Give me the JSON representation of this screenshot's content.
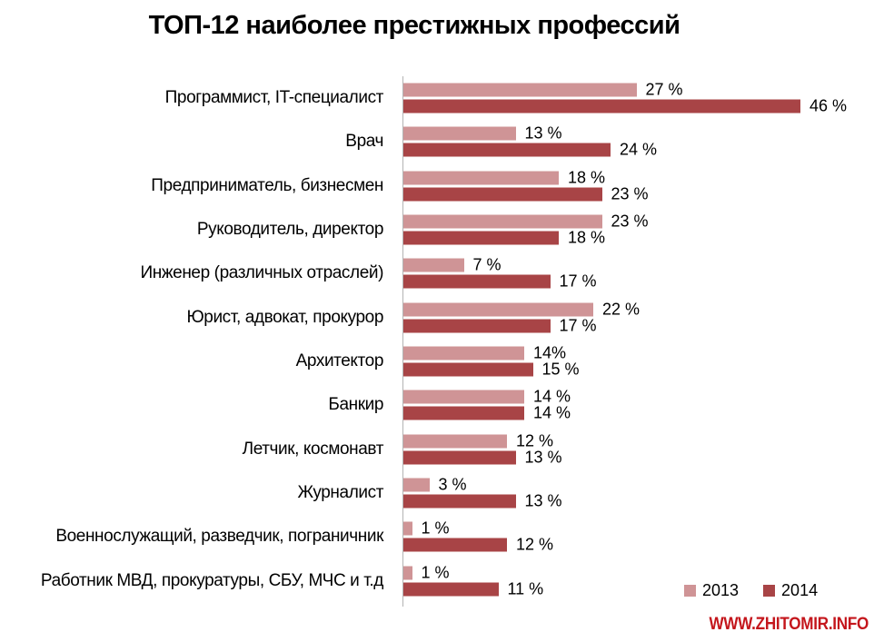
{
  "title": "ТОП-12 наиболее престижных профессий",
  "watermark": "WWW.ZHITOMIR.INFO",
  "colors": {
    "series_2013": "#CF9496",
    "series_2014": "#A84446",
    "axis": "#B3B3B3",
    "watermark": "#C4161C",
    "text": "#000000",
    "background": "#FFFFFF"
  },
  "legend": {
    "position": "bottom-right",
    "items": [
      {
        "label": "2013",
        "color": "#CF9496"
      },
      {
        "label": "2014",
        "color": "#A84446"
      }
    ]
  },
  "chart_data": {
    "type": "bar",
    "orientation": "horizontal",
    "title": "ТОП-12 наиболее престижных профессий",
    "categories": [
      "Программист, IT-специалист",
      "Врач",
      "Предприниматель, бизнесмен",
      "Руководитель, директор",
      "Инженер (различных отраслей)",
      "Юрист, адвокат, прокурор",
      "Архитектор",
      "Банкир",
      "Летчик, космонавт",
      "Журналист",
      "Военнослужащий, разведчик, пограничник",
      "Работник МВД, прокуратуры, СБУ, МЧС и т.д"
    ],
    "series": [
      {
        "name": "2013",
        "color": "#CF9496",
        "values": [
          27,
          13,
          18,
          23,
          7,
          22,
          14,
          14,
          12,
          3,
          1,
          1
        ],
        "value_labels": [
          "27 %",
          "13 %",
          "18 %",
          "23 %",
          "7 %",
          "22 %",
          "14%",
          "14 %",
          "12 %",
          "3 %",
          "1 %",
          "1 %"
        ]
      },
      {
        "name": "2014",
        "color": "#A84446",
        "values": [
          46,
          24,
          23,
          18,
          17,
          17,
          15,
          14,
          13,
          13,
          12,
          11
        ],
        "value_labels": [
          "46 %",
          "24 %",
          "23 %",
          "18 %",
          "17 %",
          "17 %",
          "15 %",
          "14 %",
          "13 %",
          "13 %",
          "12 %",
          "11 %"
        ]
      }
    ],
    "xlim": [
      0,
      50
    ],
    "value_unit": "%",
    "grid": false,
    "legend_position": "bottom-right"
  }
}
